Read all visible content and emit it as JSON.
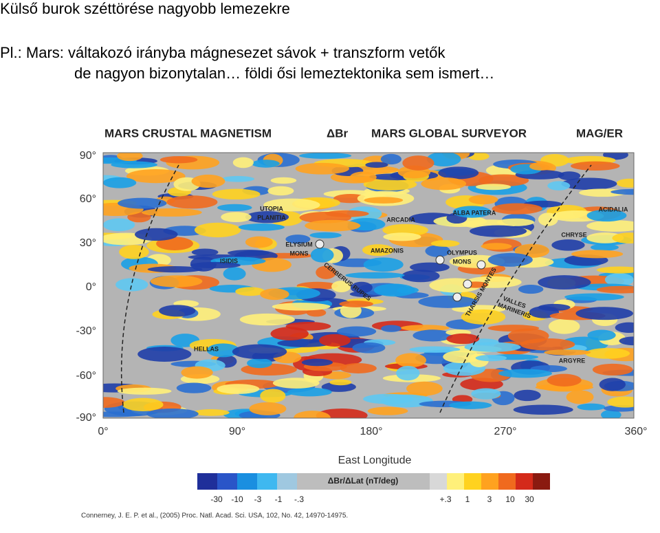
{
  "slide": {
    "title": "Külső burok széttörése nagyobb lemezekre",
    "lines": [
      "Pl.: Mars: váltakozó irányba mágnesezet sávok + transzform vetők",
      "de nagyon bizonytalan… földi ősi lemeztektonika sem ismert…"
    ]
  },
  "figure": {
    "header": [
      "MARS CRUSTAL MAGNETISM",
      "ΔBr",
      "MARS GLOBAL SURVEYOR",
      "MAG/ER"
    ],
    "lat_labels": [
      "90°",
      "60°",
      "30°",
      "0°",
      "-30°",
      "-60°",
      "-90°"
    ],
    "lon_labels": [
      "0°",
      "90°",
      "180°",
      "270°",
      "360°"
    ],
    "xlabel": "East Longitude",
    "places": [
      "UTOPIA",
      "PLANITIA",
      "ARCADIA",
      "ALBA PATERA",
      "ACIDALIA",
      "CHRYSE",
      "ELYSIUM",
      "MONS",
      "AMAZONIS",
      "OLYMPUS",
      "MONS",
      "ISIDIS",
      "CERBERUS RUPES",
      "THARSIS MONTES",
      "VALLES",
      "MARINERIS",
      "HELLAS",
      "ARGYRE"
    ],
    "colorbar_title": "ΔBr/ΔLat (nT/deg)",
    "colorbar_neg": [
      "-30",
      "-10",
      "-3",
      "-1",
      "-.3"
    ],
    "colorbar_pos": [
      "+.3",
      "1",
      "3",
      "10",
      "30"
    ],
    "citation": "Connerney, J. E. P. et al., (2005) Proc. Natl. Acad. Sci. USA, 102, No. 42, 14970-14975."
  }
}
